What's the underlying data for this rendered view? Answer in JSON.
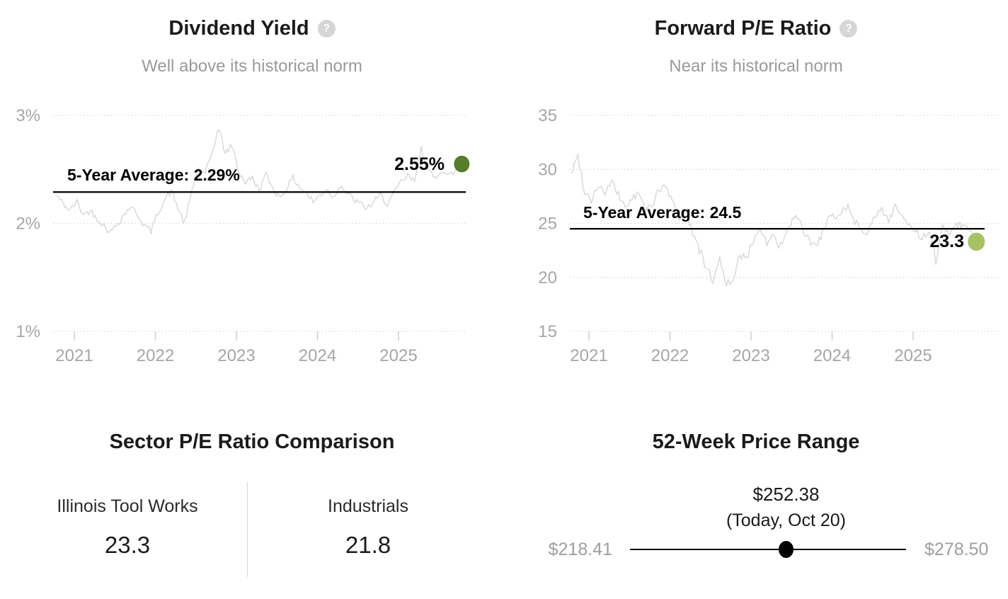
{
  "page": {
    "background": "#ffffff"
  },
  "chart_data": [
    {
      "type": "line",
      "title": "Dividend Yield",
      "help_icon": "question-mark-icon",
      "subtitle": "Well above its historical norm",
      "series_name": "Dividend yield history (monthly)",
      "x_start": 2020.78,
      "x_step_years": 0.083333,
      "x_ticks": [
        {
          "v": 2021,
          "label": "2021"
        },
        {
          "v": 2022,
          "label": "2022"
        },
        {
          "v": 2023,
          "label": "2023"
        },
        {
          "v": 2024,
          "label": "2024"
        },
        {
          "v": 2025,
          "label": "2025"
        }
      ],
      "y_ticks": [
        {
          "v": 3,
          "label": "3%"
        },
        {
          "v": 2,
          "label": "2%"
        },
        {
          "v": 1,
          "label": "1%"
        }
      ],
      "ylim": [
        1,
        3
      ],
      "grid": "dotted",
      "legend_position": "none",
      "values": [
        2.26,
        2.18,
        2.12,
        2.2,
        2.08,
        2.12,
        2.05,
        1.98,
        1.92,
        2.0,
        2.08,
        2.16,
        2.08,
        1.98,
        1.93,
        2.1,
        2.22,
        2.3,
        2.14,
        1.99,
        2.3,
        2.5,
        2.45,
        2.65,
        2.88,
        2.65,
        2.72,
        2.48,
        2.38,
        2.42,
        2.31,
        2.45,
        2.33,
        2.24,
        2.32,
        2.42,
        2.34,
        2.28,
        2.2,
        2.26,
        2.32,
        2.24,
        2.36,
        2.28,
        2.22,
        2.18,
        2.14,
        2.2,
        2.26,
        2.18,
        2.28,
        2.38,
        2.44,
        2.38,
        2.72,
        2.48,
        2.42,
        2.5,
        2.44,
        2.48,
        2.55
      ],
      "average": {
        "label": "5-Year Average: 2.29%",
        "value": 2.29
      },
      "latest": {
        "label": "2.55%",
        "value": 2.55,
        "marker_color": "#567d2b"
      },
      "line_color": "#d7d7d7",
      "average_line_color": "#000000",
      "axis_text_color": "#a6a6a6"
    },
    {
      "type": "line",
      "title": "Forward P/E Ratio",
      "help_icon": "question-mark-icon",
      "subtitle": "Near its historical norm",
      "series_name": "Forward P/E history (monthly)",
      "x_start": 2020.78,
      "x_step_years": 0.083333,
      "x_ticks": [
        {
          "v": 2021,
          "label": "2021"
        },
        {
          "v": 2022,
          "label": "2022"
        },
        {
          "v": 2023,
          "label": "2023"
        },
        {
          "v": 2024,
          "label": "2024"
        },
        {
          "v": 2025,
          "label": "2025"
        }
      ],
      "y_ticks": [
        {
          "v": 35,
          "label": "35"
        },
        {
          "v": 30,
          "label": "30"
        },
        {
          "v": 25,
          "label": "25"
        },
        {
          "v": 20,
          "label": "20"
        },
        {
          "v": 15,
          "label": "15"
        }
      ],
      "ylim": [
        15,
        35
      ],
      "grid": "dotted",
      "legend_position": "none",
      "values": [
        29.6,
        31.3,
        28.0,
        27.2,
        28.6,
        27.8,
        28.8,
        27.6,
        26.6,
        27.2,
        27.8,
        26.2,
        26.8,
        28.0,
        28.4,
        27.0,
        25.6,
        26.2,
        24.2,
        22.6,
        20.8,
        19.8,
        21.6,
        19.6,
        19.3,
        22.2,
        21.6,
        23.6,
        24.6,
        23.2,
        23.8,
        22.8,
        24.2,
        25.6,
        24.8,
        23.6,
        22.9,
        23.8,
        25.2,
        25.6,
        26.2,
        26.6,
        25.2,
        24.6,
        24.2,
        25.6,
        26.2,
        25.4,
        26.6,
        25.8,
        24.6,
        24.2,
        23.6,
        24.0,
        21.6,
        24.6,
        24.2,
        25.0,
        24.8,
        24.6,
        23.3
      ],
      "average": {
        "label": "5-Year Average: 24.5",
        "value": 24.5
      },
      "latest": {
        "label": "23.3",
        "value": 23.3,
        "marker_color": "#a8c163"
      },
      "line_color": "#d7d7d7",
      "average_line_color": "#000000",
      "axis_text_color": "#a6a6a6"
    }
  ],
  "sector_comparison": {
    "title": "Sector P/E Ratio Comparison",
    "columns": [
      {
        "label": "Illinois Tool Works",
        "value": "23.3"
      },
      {
        "label": "Industrials",
        "value": "21.8"
      }
    ]
  },
  "price_range": {
    "title": "52-Week Price Range",
    "current_price": "$252.38",
    "current_label": "(Today, Oct 20)",
    "low": "$218.41",
    "high": "$278.50",
    "low_value": 218.41,
    "high_value": 278.5,
    "current_value": 252.38,
    "marker_color": "#000000"
  }
}
